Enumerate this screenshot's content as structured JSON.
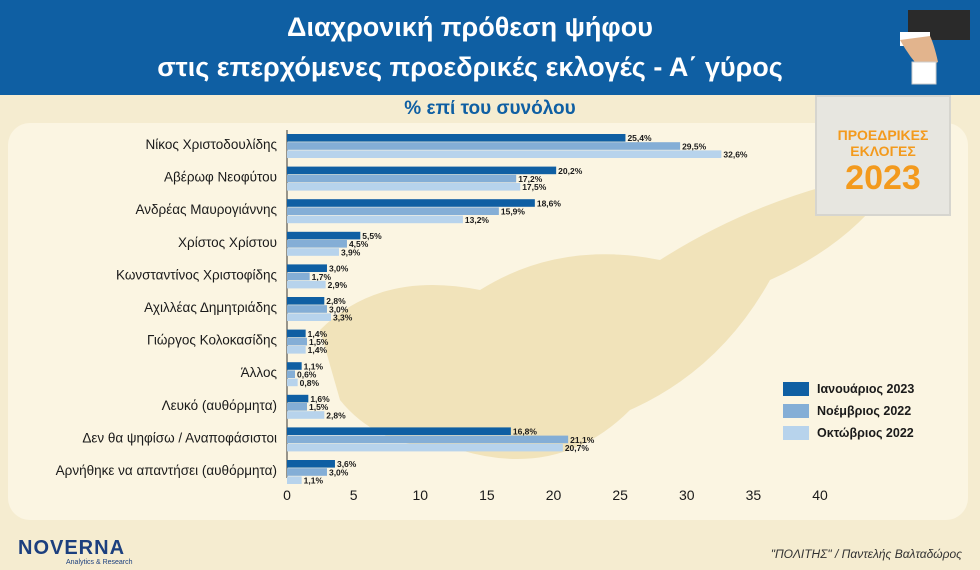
{
  "header": {
    "title_line1": "Διαχρονική πρόθεση ψήφου",
    "title_line2": "στις επερχόμενες προεδρικές εκλογές - Α΄ γύρος"
  },
  "subtitle": "% επί του συνόλου",
  "badge": {
    "line1": "ΠΡΟΕΔΡΙΚΕΣ",
    "line2": "ΕΚΛΟΓΕΣ",
    "year": "2023"
  },
  "logo": {
    "name": "NOVERNA",
    "tagline": "Analytics & Research"
  },
  "credit": "\"ΠΟΛΙΤΗΣ\" / Παντελής Βαλταδώρος",
  "colors": {
    "header": "#0f5fa3",
    "series1": "#0f5fa3",
    "series2": "#84aed6",
    "series3": "#b7d3ec",
    "accent": "#f39a1d"
  },
  "chart_data": {
    "type": "bar",
    "orientation": "horizontal",
    "categories": [
      "Νίκος Χριστοδουλίδης",
      "Αβέρωφ Νεοφύτου",
      "Ανδρέας Μαυρογιάννης",
      "Χρίστος Χρίστου",
      "Κωνσταντίνος Χριστοφίδης",
      "Αχιλλέας Δημητριάδης",
      "Γιώργος Κολοκασίδης",
      "Άλλος",
      "Λευκό (αυθόρμητα)",
      "Δεν θα ψηφίσω / Αναποφάσιστοι",
      "Αρνήθηκε να απαντήσει (αυθόρμητα)"
    ],
    "series": [
      {
        "name": "Ιανουάριος 2023",
        "color": "#0f5fa3",
        "values": [
          25.4,
          20.2,
          18.6,
          5.5,
          3.0,
          2.8,
          1.4,
          1.1,
          1.6,
          16.8,
          3.6
        ],
        "labels": [
          "25,4%",
          "20,2%",
          "18,6%",
          "5,5%",
          "3,0%",
          "2,8%",
          "1,4%",
          "1,1%",
          "1,6%",
          "16,8%",
          "3,6%"
        ]
      },
      {
        "name": "Νοέμβριος 2022",
        "color": "#84aed6",
        "values": [
          29.5,
          17.2,
          15.9,
          4.5,
          1.7,
          3.0,
          1.5,
          0.6,
          1.5,
          21.1,
          3.0
        ],
        "labels": [
          "29,5%",
          "17,2%",
          "15,9%",
          "4,5%",
          "1,7%",
          "3,0%",
          "1,5%",
          "0,6%",
          "1,5%",
          "21,1%",
          "3,0%"
        ]
      },
      {
        "name": "Οκτώβριος 2022",
        "color": "#b7d3ec",
        "values": [
          32.6,
          17.5,
          13.2,
          3.9,
          2.9,
          3.3,
          1.4,
          0.8,
          2.8,
          20.7,
          1.1
        ],
        "labels": [
          "32,6%",
          "17,5%",
          "13,2%",
          "3,9%",
          "2,9%",
          "3,3%",
          "1,4%",
          "0,8%",
          "2,8%",
          "20,7%",
          "1,1%"
        ]
      }
    ],
    "xticks": [
      "0",
      "5",
      "10",
      "15",
      "20",
      "25",
      "30",
      "35",
      "40"
    ],
    "xlim": [
      0,
      40
    ],
    "legend_position": "bottom-right",
    "grid": false
  }
}
